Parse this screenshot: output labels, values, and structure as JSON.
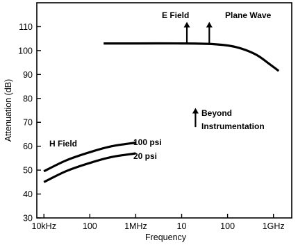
{
  "chart_data": {
    "type": "line",
    "title": "",
    "xlabel": "Frequency",
    "ylabel": "Attenuation (dB)",
    "x_scale": "log",
    "x_unit": "Hz",
    "xlim": [
      7000,
      2500000000
    ],
    "ylim": [
      30,
      120
    ],
    "grid": false,
    "x_ticks": [
      {
        "value": 10000,
        "label": "10kHz"
      },
      {
        "value": 100000,
        "label": "100"
      },
      {
        "value": 1000000,
        "label": "1MHz"
      },
      {
        "value": 10000000,
        "label": "10"
      },
      {
        "value": 100000000,
        "label": "100"
      },
      {
        "value": 1000000000,
        "label": "1GHz"
      }
    ],
    "y_ticks": [
      30,
      40,
      50,
      60,
      70,
      80,
      90,
      100,
      110
    ],
    "series": [
      {
        "name": "100 psi",
        "points": [
          [
            10000,
            49.5
          ],
          [
            30000,
            54
          ],
          [
            100000,
            57.5
          ],
          [
            300000,
            60
          ],
          [
            1000000,
            61.5
          ]
        ]
      },
      {
        "name": "20 psi",
        "points": [
          [
            10000,
            45
          ],
          [
            30000,
            49.5
          ],
          [
            100000,
            53
          ],
          [
            300000,
            55.5
          ],
          [
            1000000,
            57
          ]
        ]
      },
      {
        "name": "Plane Wave",
        "points": [
          [
            200000,
            103
          ],
          [
            1000000,
            103
          ],
          [
            10000000,
            103
          ],
          [
            50000000,
            102.7
          ],
          [
            150000000,
            101.5
          ],
          [
            400000000,
            98.5
          ],
          [
            800000000,
            94.5
          ],
          [
            1300000000,
            91.5
          ]
        ]
      }
    ],
    "annotations": {
      "h_field": "H Field",
      "e_field": "E Field",
      "plane_wave": "Plane Wave",
      "beyond_line1": "Beyond",
      "beyond_line2": "Instrumentation"
    },
    "up_arrows": [
      {
        "x": 13000000,
        "y_from": 103,
        "y_to": 112
      },
      {
        "x": 40000000,
        "y_from": 103,
        "y_to": 112
      },
      {
        "x": 20000000,
        "y_from": 68,
        "y_to": 76
      }
    ]
  }
}
